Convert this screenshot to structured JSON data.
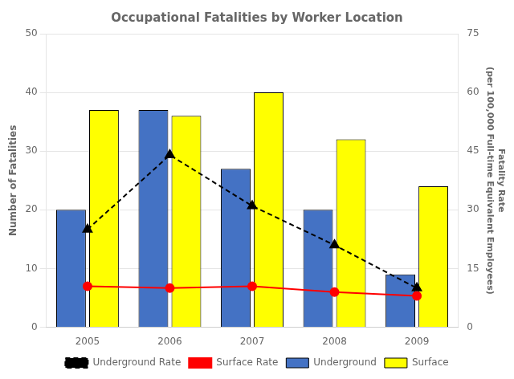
{
  "chart_data": {
    "type": "bar",
    "title": "Occupational Fatalities by Worker Location",
    "categories": [
      "2005",
      "2006",
      "2007",
      "2008",
      "2009"
    ],
    "series": [
      {
        "name": "Underground",
        "type": "bar",
        "color": "#4472C4",
        "values": [
          20,
          37,
          27,
          20,
          9
        ]
      },
      {
        "name": "Surface",
        "type": "bar",
        "color": "#FFFF00",
        "values": [
          37,
          36,
          40,
          32,
          24
        ]
      },
      {
        "name": "Underground Rate",
        "type": "line",
        "axis": "y2",
        "color": "#000000",
        "marker": "triangle",
        "line_style": "dashed",
        "values": [
          25,
          44,
          31,
          21,
          10
        ]
      },
      {
        "name": "Surface Rate",
        "type": "line",
        "axis": "y2",
        "color": "#FF0000",
        "marker": "circle",
        "line_style": "solid",
        "values": [
          10.5,
          10,
          10.5,
          9,
          8
        ]
      }
    ],
    "ylabel": "Number of Fatalities",
    "y2label": [
      "Fatality Rate",
      "(per 100,000 Full-time Equivalent Employees)"
    ],
    "ylim": [
      0,
      50
    ],
    "yticks": [
      0,
      10,
      20,
      30,
      40,
      50
    ],
    "y2lim": [
      0,
      75
    ],
    "y2ticks": [
      0,
      15,
      30,
      45,
      60,
      75
    ],
    "grid": true,
    "legend": "bottom"
  }
}
